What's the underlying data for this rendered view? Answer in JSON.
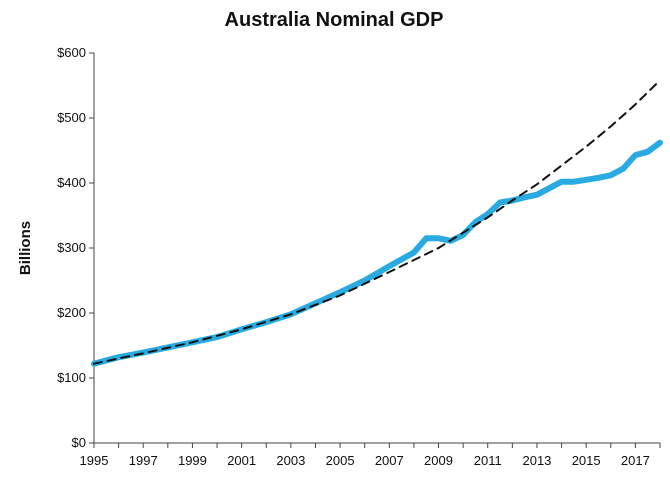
{
  "chart_data": {
    "type": "line",
    "title": "Australia Nominal GDP",
    "xlabel": "",
    "ylabel": "Billions",
    "x_ticks": [
      "1995",
      "1997",
      "1999",
      "2001",
      "2003",
      "2005",
      "2007",
      "2009",
      "2011",
      "2013",
      "2015",
      "2017"
    ],
    "y_ticks": [
      "$0",
      "$100",
      "$200",
      "$300",
      "$400",
      "$500",
      "$600"
    ],
    "xlim": [
      1995,
      2018
    ],
    "ylim": [
      0,
      600
    ],
    "grid": false,
    "legend": "none",
    "series": [
      {
        "style": "solid",
        "color": "#29abe2",
        "points": [
          [
            1995,
            122
          ],
          [
            1996,
            132
          ],
          [
            1997,
            139
          ],
          [
            1998,
            147
          ],
          [
            1999,
            155
          ],
          [
            2000,
            163
          ],
          [
            2001,
            175
          ],
          [
            2002,
            186
          ],
          [
            2003,
            198
          ],
          [
            2004,
            215
          ],
          [
            2005,
            232
          ],
          [
            2006,
            250
          ],
          [
            2007,
            272
          ],
          [
            2008,
            293
          ],
          [
            2008.5,
            315
          ],
          [
            2009,
            315
          ],
          [
            2009.5,
            311
          ],
          [
            2010,
            320
          ],
          [
            2010.5,
            340
          ],
          [
            2011,
            352
          ],
          [
            2011.5,
            370
          ],
          [
            2012,
            373
          ],
          [
            2012.5,
            378
          ],
          [
            2013,
            382
          ],
          [
            2013.5,
            392
          ],
          [
            2014,
            402
          ],
          [
            2014.5,
            402
          ],
          [
            2015,
            405
          ],
          [
            2015.5,
            408
          ],
          [
            2016,
            412
          ],
          [
            2016.5,
            422
          ],
          [
            2017,
            443
          ],
          [
            2017.5,
            448
          ],
          [
            2018,
            462
          ]
        ]
      },
      {
        "style": "dashed",
        "color": "#111111",
        "points": [
          [
            1995,
            122
          ],
          [
            1997,
            138
          ],
          [
            1999,
            155
          ],
          [
            2001,
            175
          ],
          [
            2003,
            198
          ],
          [
            2005,
            227
          ],
          [
            2007,
            263
          ],
          [
            2009,
            300
          ],
          [
            2011,
            347
          ],
          [
            2012,
            373
          ],
          [
            2013,
            398
          ],
          [
            2015,
            456
          ],
          [
            2016,
            487
          ],
          [
            2017,
            521
          ],
          [
            2018,
            558
          ]
        ]
      }
    ]
  }
}
